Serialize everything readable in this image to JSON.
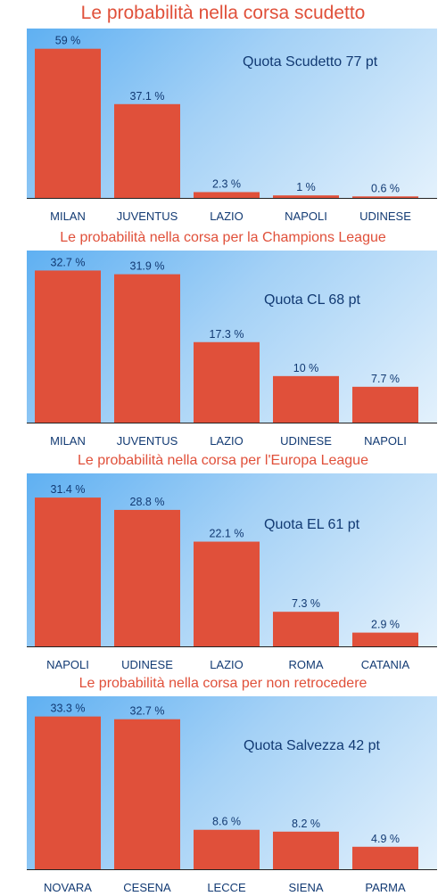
{
  "chart_data": [
    {
      "type": "bar",
      "title": "Le probabilità nella corsa scudetto",
      "annotation": "Quota Scudetto 77 pt",
      "categories": [
        "MILAN",
        "JUVENTUS",
        "LAZIO",
        "NAPOLI",
        "UDINESE"
      ],
      "values": [
        59,
        37.1,
        2.3,
        1,
        0.6
      ],
      "value_labels": [
        "59 %",
        "37.1 %",
        "2.3 %",
        "1 %",
        "0.6 %"
      ],
      "ylim": [
        0,
        67
      ],
      "bar_color": "#e0503a"
    },
    {
      "type": "bar",
      "title": "Le probabilità nella corsa per la Champions League",
      "annotation": "Quota CL 68 pt",
      "categories": [
        "MILAN",
        "JUVENTUS",
        "LAZIO",
        "UDINESE",
        "NAPOLI"
      ],
      "values": [
        32.7,
        31.9,
        17.3,
        10,
        7.7
      ],
      "value_labels": [
        "32.7 %",
        "31.9 %",
        "17.3 %",
        "10 %",
        "7.7 %"
      ],
      "ylim": [
        0,
        37
      ],
      "bar_color": "#e0503a"
    },
    {
      "type": "bar",
      "title": "Le probabilità nella corsa per l'Europa League",
      "annotation": "Quota EL 61 pt",
      "categories": [
        "NAPOLI",
        "UDINESE",
        "LAZIO",
        "ROMA",
        "CATANIA"
      ],
      "values": [
        31.4,
        28.8,
        22.1,
        7.3,
        2.9
      ],
      "value_labels": [
        "31.4 %",
        "28.8 %",
        "22.1 %",
        "7.3 %",
        "2.9 %"
      ],
      "ylim": [
        0,
        36.5
      ],
      "bar_color": "#e0503a"
    },
    {
      "type": "bar",
      "title": "Le probabilità nella corsa per non retrocedere",
      "annotation": "Quota Salvezza 42 pt",
      "categories": [
        "NOVARA",
        "CESENA",
        "LECCE",
        "SIENA",
        "PARMA"
      ],
      "values": [
        33.3,
        32.7,
        8.6,
        8.2,
        4.9
      ],
      "value_labels": [
        "33.3 %",
        "32.7 %",
        "8.6 %",
        "8.2 %",
        "4.9 %"
      ],
      "ylim": [
        0,
        37.7
      ],
      "bar_color": "#e0503a"
    }
  ],
  "colors": {
    "title": "#e0503a",
    "text": "#123a73",
    "bar": "#e0503a",
    "axis": "#222222"
  }
}
